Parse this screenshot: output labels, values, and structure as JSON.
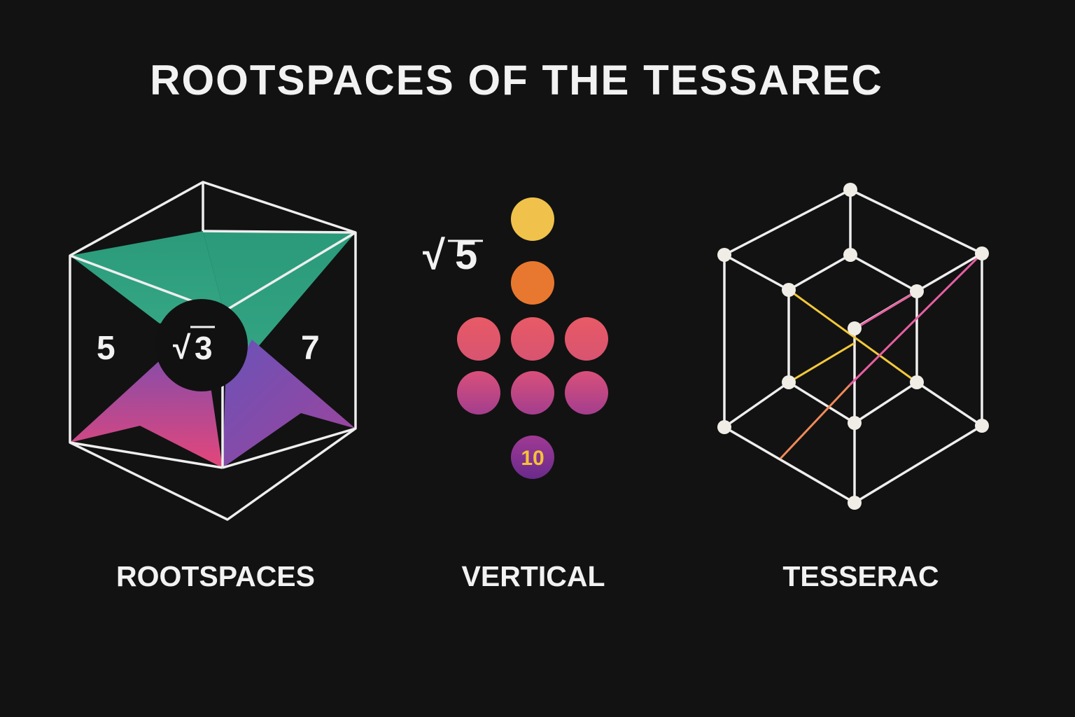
{
  "title": "ROOTSPACES OF THE TESSAREC",
  "panels": [
    {
      "caption": "ROOTSPACES",
      "left_number": "5",
      "center_root": "3",
      "right_number": "7",
      "colors": {
        "green": "#2fa07f",
        "magenta": "#e0467a",
        "purple": "#7a4aa8",
        "circle": "#111111"
      }
    },
    {
      "caption": "VERTICAL",
      "root_label": "5",
      "dot_colors": [
        "#f0c24b",
        "#e8782f",
        "#e45a6a",
        "#c8508a",
        "#7a2a90"
      ],
      "bottom_dot_label": "10",
      "bottom_dot_label_color": "#f5c23a"
    },
    {
      "caption": "TESSERAC",
      "line_color": "#eeeeee",
      "node_color": "#f0ede6",
      "accent_colors": [
        "#f3c93a",
        "#e85fa0",
        "#f08a5a"
      ]
    }
  ],
  "root_symbol": "√"
}
